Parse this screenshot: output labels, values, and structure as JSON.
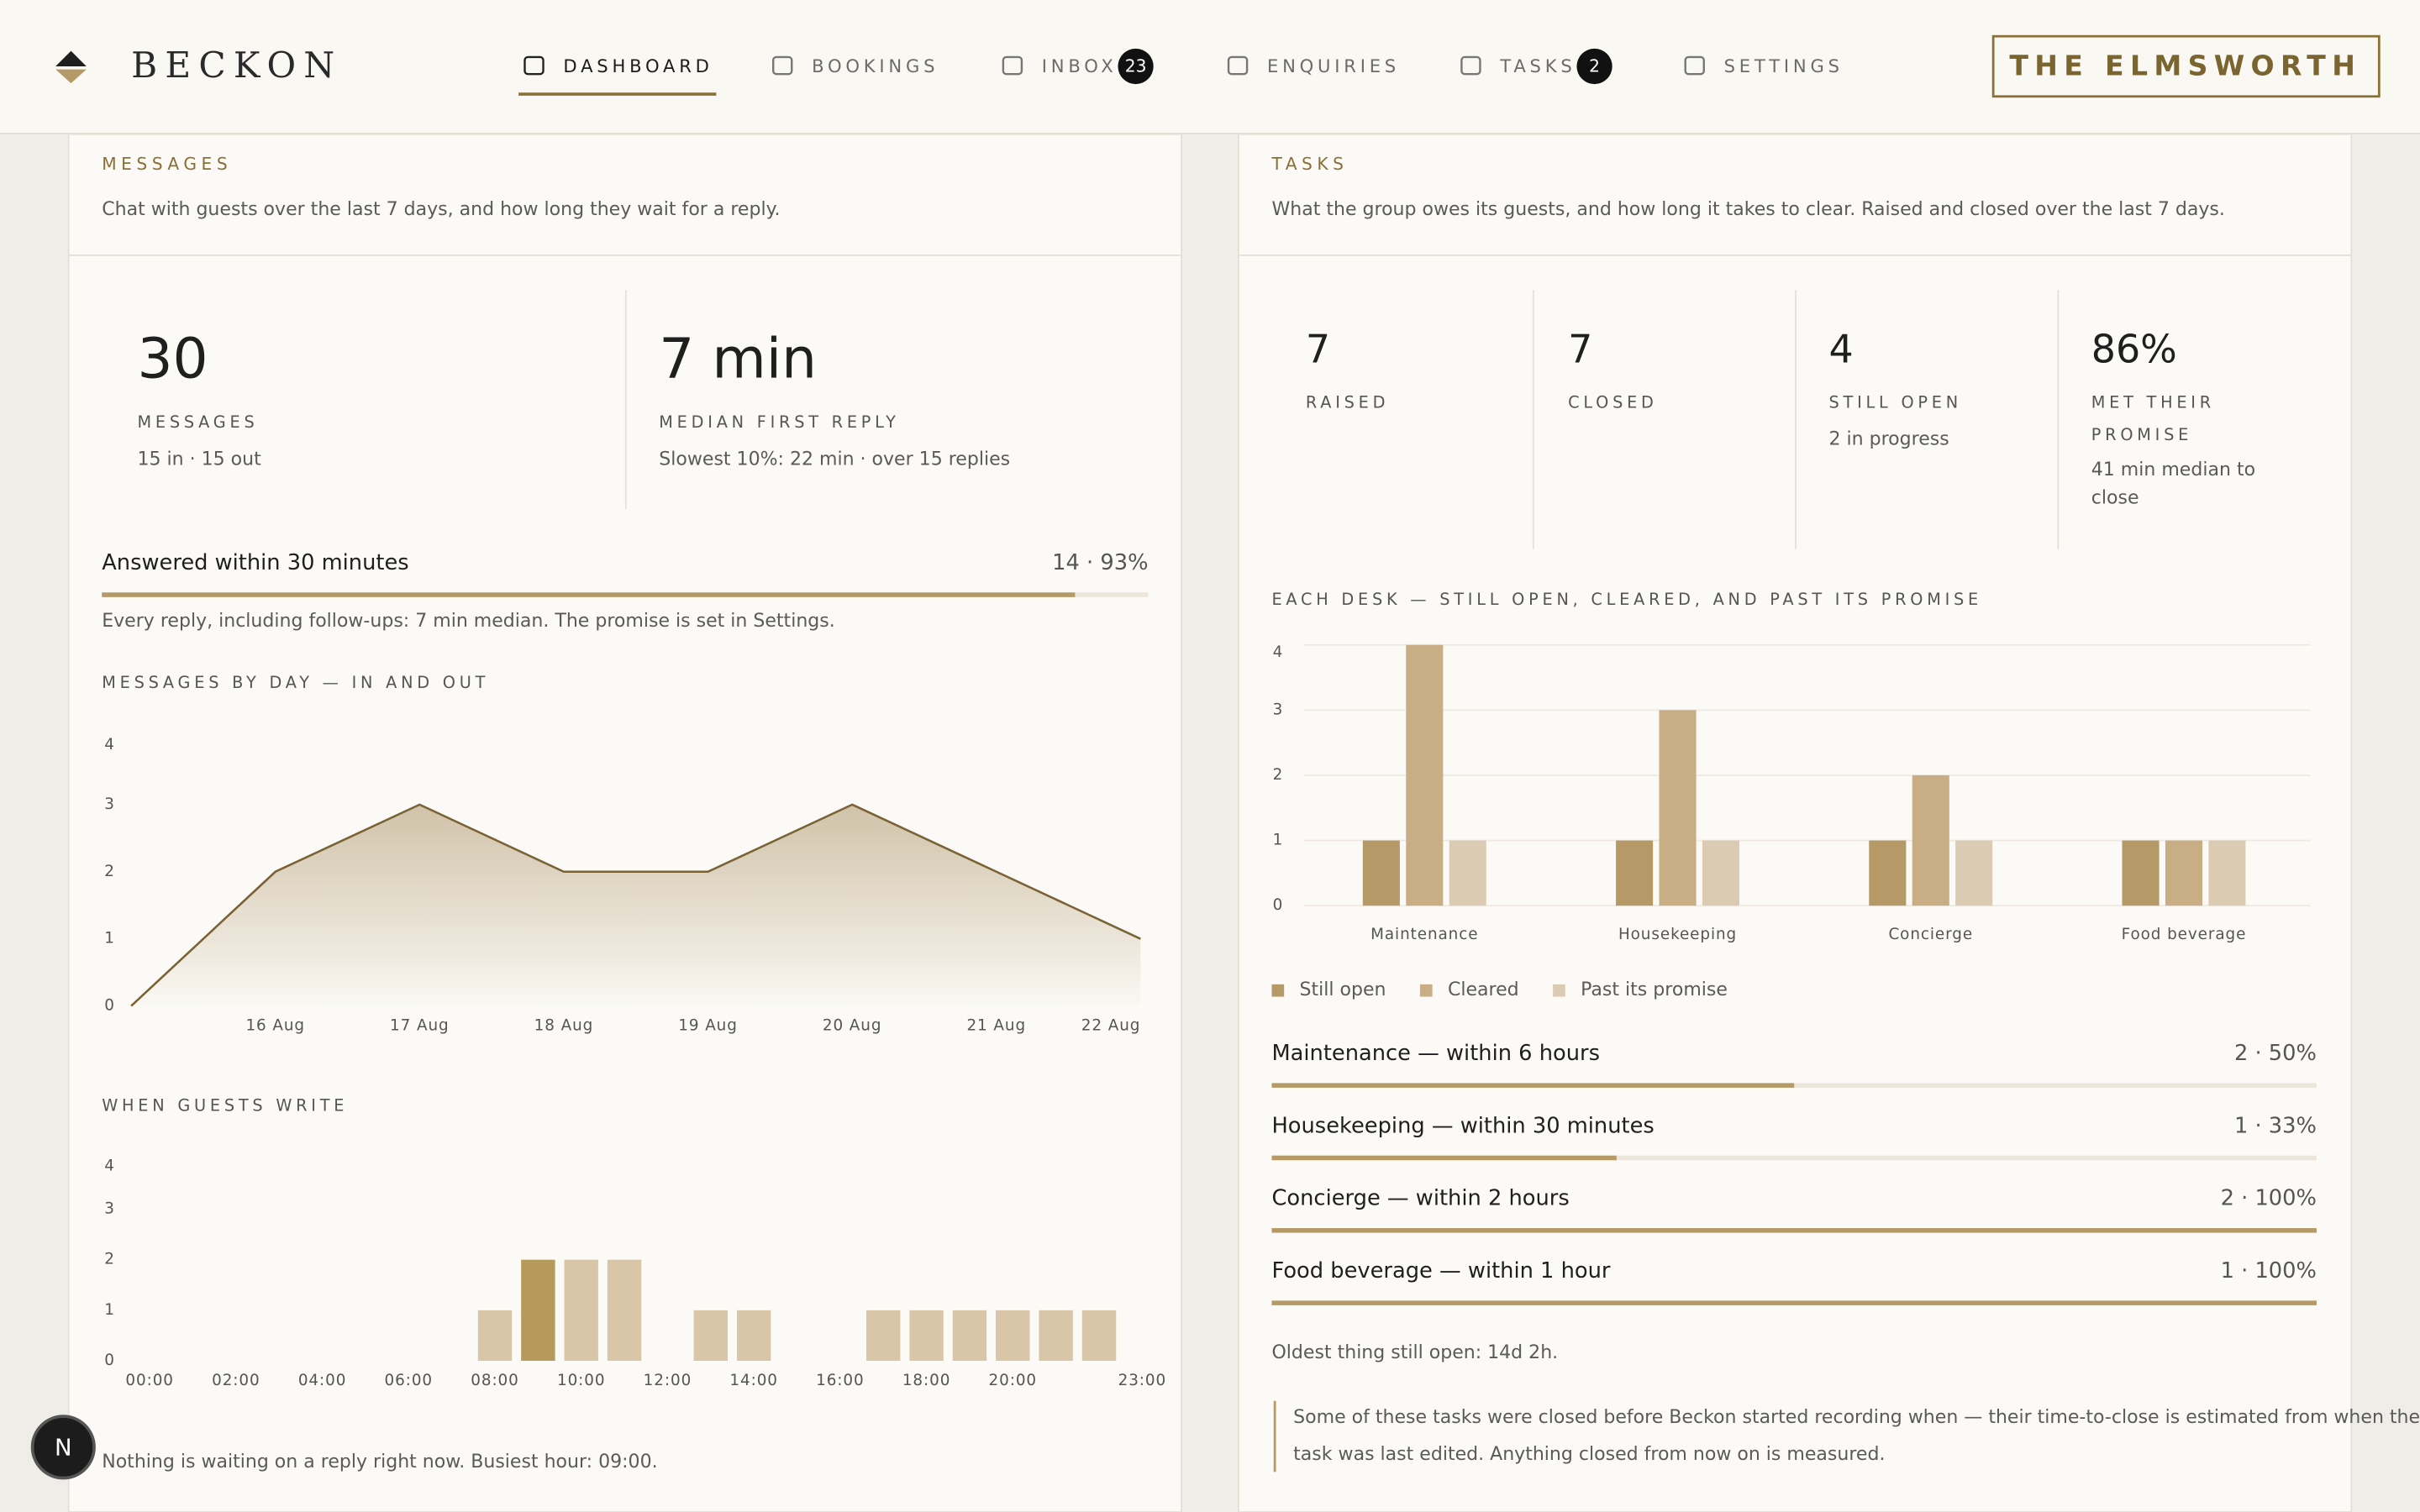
{
  "brand": "BECKON",
  "nav": [
    {
      "label": "DASHBOARD",
      "active": true
    },
    {
      "label": "BOOKINGS"
    },
    {
      "label": "INBOX",
      "badge": 23
    },
    {
      "label": "ENQUIRIES"
    },
    {
      "label": "TASKS",
      "badge": 2
    },
    {
      "label": "SETTINGS"
    }
  ],
  "property": "THE ELMSWORTH",
  "messages": {
    "title": "MESSAGES",
    "subtitle": "Chat with guests over the last 7 days, and how long they wait for a reply.",
    "stats": [
      {
        "value": "30",
        "label": "MESSAGES",
        "detail": "15 in · 15 out"
      },
      {
        "value": "7 min",
        "label": "MEDIAN FIRST REPLY",
        "detail": "Slowest 10%: 22 min · over 15 replies"
      }
    ],
    "sla": {
      "label": "Answered within 30 minutes",
      "value_label": "14 · 93%",
      "percent": 93
    },
    "note": "Every reply, including follow-ups: 7 min median. The promise is set in Settings.",
    "footer": "Nothing is waiting on a reply right now. Busiest hour: 09:00."
  },
  "tasks": {
    "title": "TASKS",
    "subtitle": "What the group owes its guests, and how long it takes to clear. Raised and closed over the last 7 days.",
    "stats": [
      {
        "value": "7",
        "label": "RAISED"
      },
      {
        "value": "7",
        "label": "CLOSED"
      },
      {
        "value": "4",
        "label": "STILL OPEN",
        "detail": "2 in progress"
      },
      {
        "value": "86%",
        "label": "MET THEIR PROMISE",
        "detail": "41 min median to close"
      }
    ],
    "desks": [
      {
        "label": "Maintenance — within 6 hours",
        "value_label": "2 · 50%",
        "percent": 50
      },
      {
        "label": "Housekeeping — within 30 minutes",
        "value_label": "1 · 33%",
        "percent": 33
      },
      {
        "label": "Concierge — within 2 hours",
        "value_label": "2 · 100%",
        "percent": 100
      },
      {
        "label": "Food beverage — within 1 hour",
        "value_label": "1 · 100%",
        "percent": 100
      }
    ],
    "oldest": "Oldest thing still open: 14d 2h.",
    "callout": "Some of these tasks were closed before Beckon started recording when — their time-to-close is estimated from when the task was last edited. Anything closed from now on is measured."
  },
  "dev_badge": "N",
  "chart_data": [
    {
      "type": "line",
      "title": "MESSAGES BY DAY — IN AND OUT",
      "categories": [
        null,
        "16 Aug",
        "17 Aug",
        "18 Aug",
        "19 Aug",
        "20 Aug",
        "21 Aug",
        "22 Aug"
      ],
      "values": [
        0,
        2,
        3,
        2,
        2,
        3,
        2,
        1
      ],
      "color": "#7a6234",
      "ylim": [
        0,
        4
      ],
      "yticks": [
        0,
        1,
        2,
        3,
        4
      ],
      "grid": false
    },
    {
      "type": "bar",
      "title": "WHEN GUESTS WRITE",
      "categories": [
        "00:00",
        null,
        "02:00",
        null,
        "04:00",
        null,
        "06:00",
        null,
        "08:00",
        null,
        "10:00",
        null,
        "12:00",
        null,
        "14:00",
        null,
        "16:00",
        null,
        "18:00",
        null,
        "20:00",
        null,
        null,
        "23:00"
      ],
      "values": [
        0,
        0,
        0,
        0,
        0,
        0,
        0,
        0,
        1,
        2,
        2,
        2,
        0,
        1,
        1,
        0,
        0,
        1,
        1,
        1,
        1,
        1,
        1,
        0
      ],
      "colors": [
        "#d9c6a8",
        "#d9c6a8",
        "#d9c6a8",
        "#d9c6a8",
        "#d9c6a8",
        "#d9c6a8",
        "#d9c6a8",
        "#d9c6a8",
        "#d9c6a8",
        "#b59a5c",
        "#d9c6a8",
        "#d9c6a8",
        "#d9c6a8",
        "#d9c6a8",
        "#d9c6a8",
        "#d9c6a8",
        "#d9c6a8",
        "#d9c6a8",
        "#d9c6a8",
        "#d9c6a8",
        "#d9c6a8",
        "#d9c6a8",
        "#d9c6a8",
        "#d9c6a8"
      ],
      "ylim": [
        0,
        4
      ],
      "yticks": [
        0,
        1,
        2,
        3,
        4
      ],
      "grid": false
    },
    {
      "type": "grouped_bar",
      "title": "EACH DESK — STILL OPEN, CLEARED, AND PAST ITS PROMISE",
      "categories": [
        "Maintenance",
        "Housekeeping",
        "Concierge",
        "Food beverage"
      ],
      "series": [
        {
          "name": "Still open",
          "color": "#b59a68",
          "values": [
            1,
            1,
            1,
            1
          ]
        },
        {
          "name": "Cleared",
          "color": "#c8ad85",
          "values": [
            4,
            3,
            2,
            1
          ]
        },
        {
          "name": "Past its promise",
          "color": "#dccbb3",
          "values": [
            1,
            1,
            1,
            1
          ]
        }
      ],
      "ylim": [
        0,
        4
      ],
      "yticks": [
        0,
        1,
        2,
        3,
        4
      ],
      "grid": true,
      "legend": "bottom-left"
    }
  ]
}
